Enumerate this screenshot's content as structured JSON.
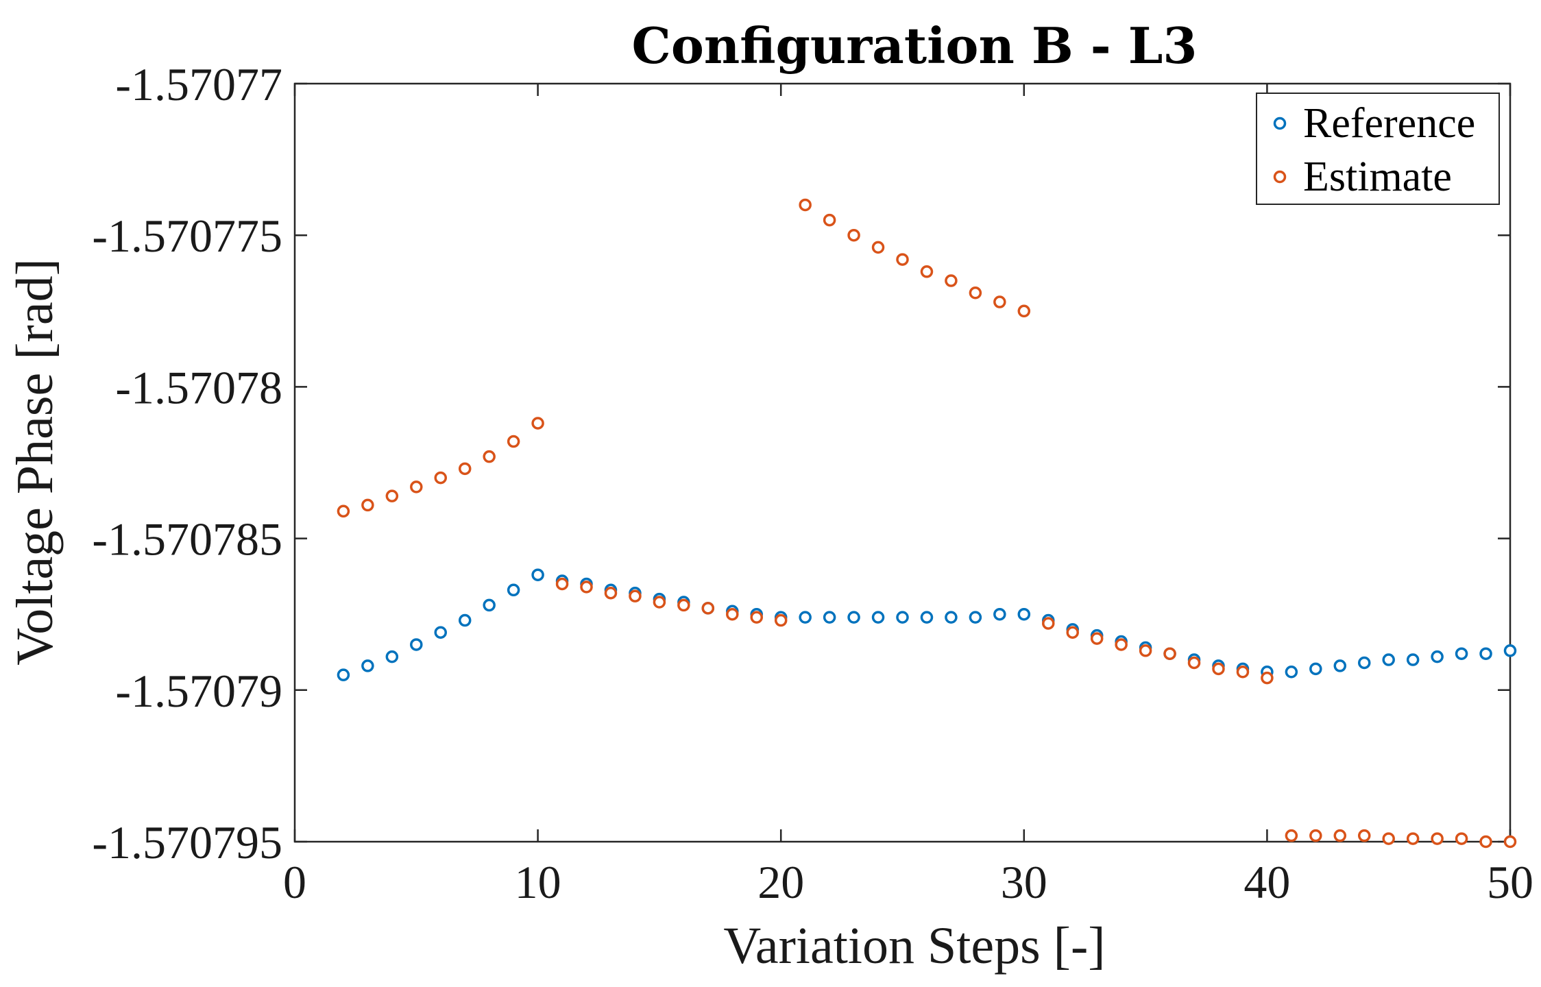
{
  "chart_data": {
    "type": "scatter",
    "title": "Configuration B - L3",
    "xlabel": "Variation Steps [-]",
    "ylabel": "Voltage Phase [rad]",
    "xlim": [
      0,
      50
    ],
    "ylim": [
      -1.570795,
      -1.57077
    ],
    "xticks": [
      0,
      10,
      20,
      30,
      40,
      50
    ],
    "xtick_labels": [
      "0",
      "10",
      "20",
      "30",
      "40",
      "50"
    ],
    "yticks": [
      -1.57077,
      -1.570775,
      -1.57078,
      -1.570785,
      -1.57079,
      -1.570795
    ],
    "ytick_labels": [
      "-1.57077",
      "-1.570775",
      "-1.57078",
      "-1.570785",
      "-1.57079",
      "-1.570795"
    ],
    "grid": false,
    "legend_position": "top-right",
    "series": [
      {
        "name": "Reference",
        "color": "#0072BD",
        "x": [
          2,
          3,
          4,
          5,
          6,
          7,
          8,
          9,
          10,
          11,
          12,
          13,
          14,
          15,
          16,
          17,
          18,
          19,
          20,
          21,
          22,
          23,
          24,
          25,
          26,
          27,
          28,
          29,
          30,
          31,
          32,
          33,
          34,
          35,
          36,
          37,
          38,
          39,
          40,
          41,
          42,
          43,
          44,
          45,
          46,
          47,
          48,
          49,
          50
        ],
        "y": [
          -1.5707895,
          -1.5707892,
          -1.5707889,
          -1.5707885,
          -1.5707881,
          -1.5707877,
          -1.5707872,
          -1.5707867,
          -1.5707862,
          -1.5707864,
          -1.5707865,
          -1.5707867,
          -1.5707868,
          -1.570787,
          -1.5707871,
          -1.5707873,
          -1.5707874,
          -1.5707875,
          -1.5707876,
          -1.5707876,
          -1.5707876,
          -1.5707876,
          -1.5707876,
          -1.5707876,
          -1.5707876,
          -1.5707876,
          -1.5707876,
          -1.5707875,
          -1.5707875,
          -1.5707877,
          -1.570788,
          -1.5707882,
          -1.5707884,
          -1.5707886,
          -1.5707888,
          -1.570789,
          -1.5707892,
          -1.5707893,
          -1.5707894,
          -1.5707894,
          -1.5707893,
          -1.5707892,
          -1.5707891,
          -1.570789,
          -1.570789,
          -1.5707889,
          -1.5707888,
          -1.5707888,
          -1.5707887
        ]
      },
      {
        "name": "Estimate",
        "color": "#D95319",
        "x": [
          2,
          3,
          4,
          5,
          6,
          7,
          8,
          9,
          10,
          11,
          12,
          13,
          14,
          15,
          16,
          17,
          18,
          19,
          20,
          21,
          22,
          23,
          24,
          25,
          26,
          27,
          28,
          29,
          30,
          31,
          32,
          33,
          34,
          35,
          36,
          37,
          38,
          39,
          40,
          41,
          42,
          43,
          44,
          45,
          46,
          47,
          48,
          49,
          50
        ],
        "y": [
          -1.5707841,
          -1.5707839,
          -1.5707836,
          -1.5707833,
          -1.570783,
          -1.5707827,
          -1.5707823,
          -1.5707818,
          -1.5707812,
          -1.5707865,
          -1.5707866,
          -1.5707868,
          -1.5707869,
          -1.5707871,
          -1.5707872,
          -1.5707873,
          -1.5707875,
          -1.5707876,
          -1.5707877,
          -1.570774,
          -1.5707745,
          -1.570775,
          -1.5707754,
          -1.5707758,
          -1.5707762,
          -1.5707765,
          -1.5707769,
          -1.5707772,
          -1.5707775,
          -1.5707878,
          -1.5707881,
          -1.5707883,
          -1.5707885,
          -1.5707887,
          -1.5707888,
          -1.5707891,
          -1.5707893,
          -1.5707894,
          -1.5707896,
          -1.5707948,
          -1.5707948,
          -1.5707948,
          -1.5707948,
          -1.5707949,
          -1.5707949,
          -1.5707949,
          -1.5707949,
          -1.570795,
          -1.570795
        ]
      }
    ]
  }
}
